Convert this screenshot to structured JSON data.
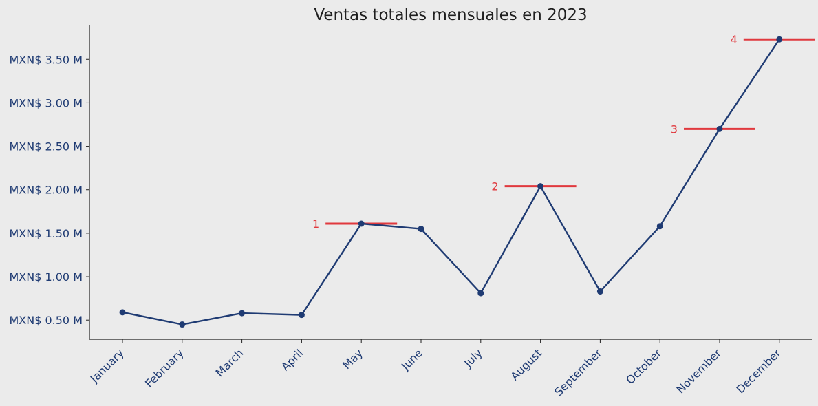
{
  "chart_data": {
    "type": "line",
    "title": "Ventas totales mensuales en 2023",
    "xlabel": "",
    "ylabel": "",
    "categories": [
      "January",
      "February",
      "March",
      "April",
      "May",
      "June",
      "July",
      "August",
      "September",
      "October",
      "November",
      "December"
    ],
    "series": [
      {
        "values": [
          0.59,
          0.45,
          0.58,
          0.56,
          1.61,
          1.55,
          0.81,
          2.04,
          0.83,
          1.58,
          2.7,
          3.73
        ]
      }
    ],
    "y_tick_values": [
      0.5,
      1.0,
      1.5,
      2.0,
      2.5,
      3.0,
      3.5
    ],
    "y_tick_labels": [
      "MXN$ 0.50 M",
      "MXN$ 1.00 M",
      "MXN$ 1.50 M",
      "MXN$ 2.00 M",
      "MXN$ 2.50 M",
      "MXN$ 3.00 M",
      "MXN$ 3.50 M"
    ],
    "ylim": [
      0.28,
      3.89
    ],
    "annotations": [
      {
        "label": "1",
        "category_index": 4,
        "value": 1.61
      },
      {
        "label": "2",
        "category_index": 7,
        "value": 2.04
      },
      {
        "label": "3",
        "category_index": 10,
        "value": 2.7
      },
      {
        "label": "4",
        "category_index": 11,
        "value": 3.73
      }
    ],
    "grid": false,
    "colors": {
      "line": "#1f3b73",
      "annotation": "#e0393e",
      "axis_text": "#1f3b73",
      "background": "#ebebeb"
    }
  }
}
